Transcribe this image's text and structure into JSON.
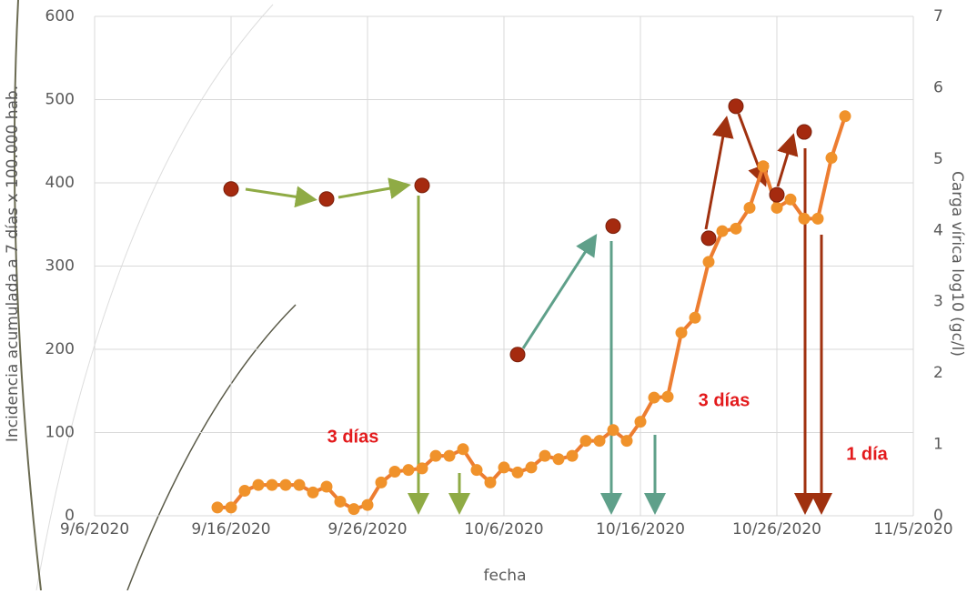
{
  "chart_data": {
    "type": "line",
    "x_label": "fecha",
    "y_label": "Incidencia acumulada a 7 días x 100.000 hab.",
    "y2_label": "Carga vírica log10 (gc/l)",
    "xlim": [
      "9/6/2020",
      "11/5/2020"
    ],
    "xticks": [
      "9/6/2020",
      "9/16/2020",
      "9/26/2020",
      "10/6/2020",
      "10/16/2020",
      "10/26/2020",
      "11/5/2020"
    ],
    "ylim": [
      0,
      600
    ],
    "yticks": [
      0,
      100,
      200,
      300,
      400,
      500,
      600
    ],
    "y2lim": [
      0,
      7
    ],
    "y2ticks": [
      0,
      1,
      2,
      3,
      4,
      5,
      6,
      7
    ],
    "grid": true,
    "series": [
      {
        "color": "#ed7d31",
        "marker": "#f0922b",
        "x": [
          "9/15/2020",
          "9/16/2020",
          "9/17/2020",
          "9/18/2020",
          "9/19/2020",
          "9/20/2020",
          "9/21/2020",
          "9/22/2020",
          "9/23/2020",
          "9/24/2020",
          "9/25/2020",
          "9/26/2020",
          "9/27/2020",
          "9/28/2020",
          "9/29/2020",
          "9/30/2020",
          "10/1/2020",
          "10/2/2020",
          "10/3/2020",
          "10/4/2020",
          "10/5/2020",
          "10/6/2020",
          "10/7/2020",
          "10/8/2020",
          "10/9/2020",
          "10/10/2020",
          "10/11/2020",
          "10/12/2020",
          "10/13/2020",
          "10/14/2020",
          "10/15/2020",
          "10/16/2020",
          "10/17/2020",
          "10/18/2020",
          "10/19/2020",
          "10/20/2020",
          "10/21/2020",
          "10/22/2020",
          "10/23/2020",
          "10/24/2020",
          "10/25/2020",
          "10/26/2020",
          "10/27/2020",
          "10/28/2020",
          "10/29/2020",
          "10/30/2020",
          "10/31/2020"
        ],
        "values": [
          10,
          10,
          30,
          37,
          37,
          37,
          37,
          28,
          35,
          17,
          8,
          13,
          40,
          53,
          55,
          57,
          72,
          72,
          80,
          55,
          40,
          58,
          52,
          58,
          72,
          68,
          72,
          90,
          90,
          103,
          90,
          113,
          142,
          143,
          220,
          238,
          305,
          342,
          345,
          370,
          420,
          370,
          380,
          357,
          357,
          430,
          480
        ]
      },
      {
        "color": "#a52a0f",
        "axis": "y2",
        "line": false,
        "x": [
          "9/16/2020",
          "9/23/2020",
          "9/30/2020",
          "10/7/2020",
          "10/14/2020",
          "10/21/2020",
          "10/23/2020",
          "10/26/2020",
          "10/28/2020"
        ],
        "values": [
          4.58,
          4.44,
          4.63,
          2.26,
          4.06,
          3.89,
          5.74,
          4.5,
          5.38
        ]
      }
    ],
    "annotations": [
      "3 días",
      "3 días",
      "1 día"
    ]
  }
}
